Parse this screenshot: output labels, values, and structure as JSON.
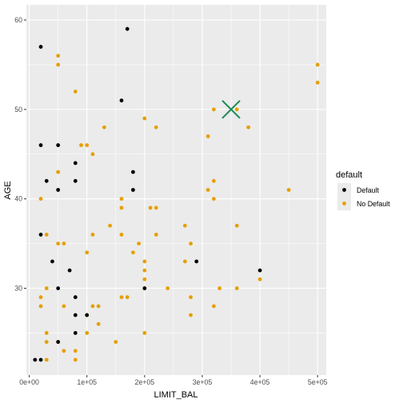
{
  "chart_data": {
    "type": "scatter",
    "xlabel": "LIMIT_BAL",
    "ylabel": "AGE",
    "xlim": [
      -5000,
      515000
    ],
    "ylim": [
      20.3,
      61.7
    ],
    "x_ticks": [
      0,
      100000,
      200000,
      300000,
      400000,
      500000
    ],
    "x_tick_labels": [
      "0e+00",
      "1e+05",
      "2e+05",
      "3e+05",
      "4e+05",
      "5e+05"
    ],
    "y_ticks": [
      30,
      40,
      50,
      60
    ],
    "y_tick_labels": [
      "30",
      "40",
      "50",
      "60"
    ],
    "grid": true,
    "legend": {
      "title": "default",
      "position": "right",
      "entries": [
        {
          "label": "Default",
          "color": "#000000"
        },
        {
          "label": "No Default",
          "color": "#E69F00"
        }
      ]
    },
    "series": [
      {
        "name": "Default",
        "color": "#000000",
        "points": [
          [
            20000,
            57
          ],
          [
            170000,
            59
          ],
          [
            160000,
            51
          ],
          [
            20000,
            46
          ],
          [
            50000,
            46
          ],
          [
            80000,
            44
          ],
          [
            30000,
            42
          ],
          [
            80000,
            42
          ],
          [
            50000,
            41
          ],
          [
            180000,
            43
          ],
          [
            180000,
            41
          ],
          [
            20000,
            36
          ],
          [
            40000,
            33
          ],
          [
            70000,
            32
          ],
          [
            290000,
            33
          ],
          [
            400000,
            32
          ],
          [
            50000,
            30
          ],
          [
            200000,
            30
          ],
          [
            80000,
            29
          ],
          [
            80000,
            27
          ],
          [
            100000,
            27
          ],
          [
            80000,
            25
          ],
          [
            50000,
            24
          ],
          [
            10000,
            22
          ],
          [
            20000,
            22
          ]
        ]
      },
      {
        "name": "No Default",
        "color": "#E69F00",
        "points": [
          [
            50000,
            56
          ],
          [
            50000,
            55
          ],
          [
            80000,
            52
          ],
          [
            500000,
            55
          ],
          [
            500000,
            53
          ],
          [
            320000,
            50
          ],
          [
            360000,
            50
          ],
          [
            200000,
            49
          ],
          [
            130000,
            48
          ],
          [
            220000,
            48
          ],
          [
            380000,
            48
          ],
          [
            310000,
            47
          ],
          [
            90000,
            46
          ],
          [
            100000,
            46
          ],
          [
            110000,
            45
          ],
          [
            50000,
            43
          ],
          [
            320000,
            42
          ],
          [
            20000,
            40
          ],
          [
            160000,
            40
          ],
          [
            310000,
            41
          ],
          [
            450000,
            41
          ],
          [
            160000,
            39
          ],
          [
            210000,
            39
          ],
          [
            220000,
            39
          ],
          [
            320000,
            40
          ],
          [
            140000,
            37
          ],
          [
            270000,
            37
          ],
          [
            360000,
            37
          ],
          [
            30000,
            36
          ],
          [
            110000,
            36
          ],
          [
            160000,
            36
          ],
          [
            220000,
            36
          ],
          [
            50000,
            35
          ],
          [
            60000,
            35
          ],
          [
            190000,
            35
          ],
          [
            280000,
            35
          ],
          [
            100000,
            34
          ],
          [
            180000,
            34
          ],
          [
            200000,
            33
          ],
          [
            270000,
            33
          ],
          [
            200000,
            32
          ],
          [
            400000,
            31
          ],
          [
            200000,
            31
          ],
          [
            30000,
            30
          ],
          [
            200000,
            30
          ],
          [
            240000,
            30
          ],
          [
            330000,
            30
          ],
          [
            360000,
            30
          ],
          [
            20000,
            29
          ],
          [
            160000,
            29
          ],
          [
            170000,
            29
          ],
          [
            280000,
            29
          ],
          [
            20000,
            28
          ],
          [
            60000,
            28
          ],
          [
            110000,
            28
          ],
          [
            120000,
            28
          ],
          [
            320000,
            28
          ],
          [
            100000,
            27
          ],
          [
            280000,
            27
          ],
          [
            120000,
            26
          ],
          [
            30000,
            25
          ],
          [
            100000,
            25
          ],
          [
            200000,
            25
          ],
          [
            30000,
            24
          ],
          [
            50000,
            24
          ],
          [
            150000,
            24
          ],
          [
            60000,
            23
          ],
          [
            80000,
            23
          ],
          [
            30000,
            22
          ],
          [
            80000,
            22
          ]
        ]
      }
    ],
    "annotations": [
      {
        "type": "x-marker",
        "x": 350000,
        "y": 50,
        "color": "#1A8A55"
      }
    ]
  }
}
